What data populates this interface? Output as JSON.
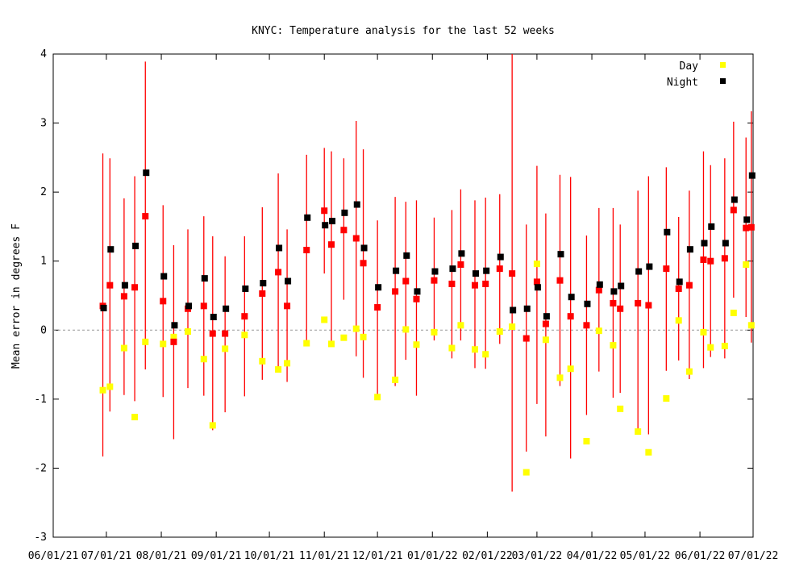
{
  "chart_data": {
    "type": "scatter",
    "title": "KNYC: Temperature analysis for the last 52 weeks",
    "xlabel": "",
    "ylabel": "Mean error in degrees F",
    "ylim": [
      -3,
      4
    ],
    "yticks": [
      "-3",
      "-2",
      "-1",
      "0",
      "1",
      "2",
      "3",
      "4"
    ],
    "xticks": [
      "06/01/21",
      "07/01/21",
      "08/01/21",
      "09/01/21",
      "10/01/21",
      "11/01/21",
      "12/01/21",
      "01/01/22",
      "02/01/22",
      "03/01/22",
      "04/01/22",
      "05/01/22",
      "06/01/22",
      "07/01/22"
    ],
    "xlim_days": [
      0,
      395
    ],
    "x_days": [
      28,
      32,
      40,
      46,
      52,
      62,
      68,
      76,
      85,
      90,
      97,
      108,
      118,
      127,
      132,
      143,
      153,
      157,
      164,
      171,
      175,
      183,
      193,
      199,
      205,
      215,
      225,
      230,
      238,
      244,
      252,
      259,
      267,
      273,
      278,
      286,
      292,
      301,
      308,
      316,
      320,
      330,
      336,
      346,
      353,
      359,
      367,
      371,
      379,
      384,
      391,
      394
    ],
    "series": [
      {
        "name": "Day",
        "color": "#ffff00",
        "values": [
          -0.87,
          -0.82,
          -0.26,
          -1.26,
          -0.17,
          -0.2,
          -0.1,
          -0.02,
          -0.42,
          -1.38,
          -0.27,
          -0.07,
          -0.45,
          -0.57,
          -0.48,
          -0.19,
          0.15,
          -0.2,
          -0.11,
          0.02,
          -0.1,
          -0.97,
          -0.72,
          0.01,
          -0.21,
          -0.03,
          -0.26,
          0.07,
          -0.28,
          -0.35,
          -0.02,
          0.05,
          -2.06,
          0.96,
          -0.14,
          -0.69,
          -0.56,
          -1.61,
          -0.01,
          -0.22,
          -1.14,
          -1.47,
          -1.77,
          -0.99,
          0.14,
          -0.6,
          -0.03,
          -0.25,
          -0.23,
          0.25,
          0.95,
          0.07
        ]
      },
      {
        "name": "Night",
        "color": "#000000",
        "values": [
          0.32,
          1.17,
          0.65,
          1.22,
          2.28,
          0.78,
          0.07,
          0.35,
          0.75,
          0.19,
          0.31,
          0.6,
          0.68,
          1.19,
          0.71,
          1.63,
          1.52,
          1.58,
          1.7,
          1.82,
          1.19,
          0.62,
          0.86,
          1.08,
          0.56,
          0.85,
          0.89,
          1.11,
          0.82,
          0.86,
          1.06,
          0.29,
          0.31,
          0.62,
          0.2,
          1.1,
          0.48,
          0.38,
          0.66,
          0.56,
          0.64,
          0.85,
          0.92,
          1.42,
          0.7,
          1.17,
          1.26,
          1.5,
          1.26,
          1.89,
          1.6,
          2.24
        ]
      },
      {
        "name": "",
        "color": "#ff0000",
        "values": [
          0.35,
          0.65,
          0.49,
          0.62,
          1.65,
          0.42,
          -0.17,
          0.31,
          0.35,
          -0.05,
          -0.05,
          0.2,
          0.53,
          0.84,
          0.35,
          1.16,
          1.73,
          1.24,
          1.45,
          1.33,
          0.97,
          0.33,
          0.56,
          0.71,
          0.45,
          0.72,
          0.67,
          0.95,
          0.65,
          0.67,
          0.89,
          0.82,
          -0.12,
          0.7,
          0.09,
          0.72,
          0.2,
          0.07,
          0.58,
          0.39,
          0.31,
          0.39,
          0.36,
          0.89,
          0.6,
          0.65,
          1.02,
          1.0,
          1.04,
          1.74,
          1.48,
          1.49
        ],
        "low": [
          -1.83,
          -1.18,
          -0.94,
          -1.03,
          -0.57,
          -0.97,
          -1.58,
          -0.84,
          -0.95,
          -1.45,
          -1.19,
          -0.96,
          -0.72,
          -0.55,
          -0.75,
          -0.21,
          0.82,
          -0.18,
          0.44,
          -0.38,
          -0.69,
          -0.93,
          -0.81,
          -0.43,
          -0.95,
          -0.15,
          -0.41,
          -0.15,
          -0.55,
          -0.56,
          -0.2,
          -2.34,
          -1.76,
          -1.07,
          -1.54,
          -0.81,
          -1.86,
          -1.23,
          -0.6,
          -0.98,
          -0.91,
          -1.46,
          -1.51,
          -0.59,
          -0.44,
          -0.71,
          -0.55,
          -0.39,
          -0.41,
          0.47,
          0.19,
          -0.18
        ],
        "high": [
          2.56,
          2.49,
          1.91,
          2.23,
          3.89,
          1.81,
          1.23,
          1.46,
          1.65,
          1.36,
          1.07,
          1.36,
          1.78,
          2.27,
          1.46,
          2.54,
          2.64,
          2.59,
          2.49,
          3.03,
          2.62,
          1.59,
          1.93,
          1.86,
          1.88,
          1.63,
          1.74,
          2.04,
          1.88,
          1.92,
          1.97,
          4.0,
          1.53,
          2.38,
          1.69,
          2.25,
          2.22,
          1.37,
          1.77,
          1.77,
          1.53,
          2.02,
          2.23,
          2.36,
          1.64,
          2.02,
          2.59,
          2.39,
          2.49,
          3.02,
          2.79,
          3.17
        ]
      }
    ],
    "reference_line": 0,
    "legend": {
      "position": "top-right",
      "entries": [
        "Day",
        "Night"
      ]
    },
    "grid": false
  }
}
